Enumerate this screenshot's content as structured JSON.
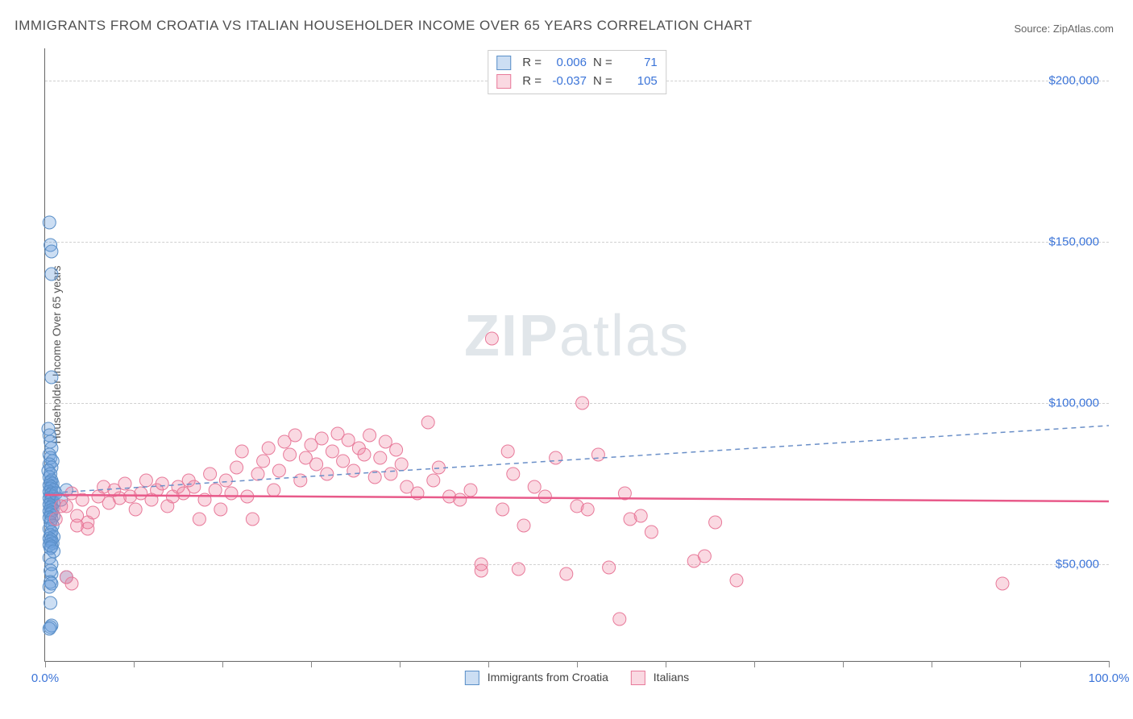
{
  "title": "IMMIGRANTS FROM CROATIA VS ITALIAN HOUSEHOLDER INCOME OVER 65 YEARS CORRELATION CHART",
  "source": "Source: ZipAtlas.com",
  "watermark": "ZIPatlas",
  "ylabel": "Householder Income Over 65 years",
  "chart": {
    "type": "scatter",
    "background_color": "#ffffff",
    "grid_color": "#d0d0d0",
    "axis_color": "#666666",
    "xlim": [
      0,
      100
    ],
    "ylim": [
      20000,
      210000
    ],
    "xtick_label_left": "0.0%",
    "xtick_label_right": "100.0%",
    "xtick_positions": [
      0,
      8.3,
      16.7,
      25,
      33.3,
      41.7,
      50,
      58.3,
      66.7,
      75,
      83.3,
      91.7,
      100
    ],
    "yticks": [
      {
        "value": 50000,
        "label": "$50,000"
      },
      {
        "value": 100000,
        "label": "$100,000"
      },
      {
        "value": 150000,
        "label": "$150,000"
      },
      {
        "value": 200000,
        "label": "$200,000"
      }
    ],
    "ytick_color": "#3b74d8",
    "xtick_color": "#3b74d8",
    "label_fontsize": 14,
    "tick_fontsize": 15,
    "title_fontsize": 17,
    "marker_radius": 8,
    "series": [
      {
        "id": "croatia",
        "name": "Immigrants from Croatia",
        "fill_color": "rgba(108,160,220,0.35)",
        "stroke_color": "#5a8fc8",
        "trend": {
          "style": "dashed",
          "color": "#6a8fc8",
          "width": 1.5,
          "y_at_x0": 72000,
          "y_at_x100": 93000
        },
        "R": "0.006",
        "N": "71",
        "points": [
          [
            0.4,
            156000
          ],
          [
            0.5,
            149000
          ],
          [
            0.6,
            147000
          ],
          [
            0.6,
            140000
          ],
          [
            0.6,
            108000
          ],
          [
            0.3,
            92000
          ],
          [
            0.4,
            90000
          ],
          [
            0.5,
            88000
          ],
          [
            0.6,
            86000
          ],
          [
            0.4,
            84000
          ],
          [
            0.5,
            83000
          ],
          [
            0.7,
            82000
          ],
          [
            0.4,
            81000
          ],
          [
            0.6,
            80000
          ],
          [
            0.3,
            79000
          ],
          [
            0.5,
            78000
          ],
          [
            0.4,
            77000
          ],
          [
            0.6,
            76000
          ],
          [
            0.5,
            75500
          ],
          [
            0.7,
            75000
          ],
          [
            0.4,
            74500
          ],
          [
            0.6,
            74000
          ],
          [
            0.5,
            73500
          ],
          [
            0.8,
            73000
          ],
          [
            0.4,
            72500
          ],
          [
            0.6,
            72000
          ],
          [
            0.5,
            71500
          ],
          [
            0.7,
            71000
          ],
          [
            0.4,
            70500
          ],
          [
            0.6,
            70000
          ],
          [
            0.5,
            69500
          ],
          [
            0.8,
            69000
          ],
          [
            0.4,
            68500
          ],
          [
            0.6,
            68000
          ],
          [
            0.5,
            67500
          ],
          [
            0.7,
            67000
          ],
          [
            0.4,
            66500
          ],
          [
            0.6,
            66000
          ],
          [
            0.5,
            65500
          ],
          [
            0.8,
            65000
          ],
          [
            0.4,
            64500
          ],
          [
            0.6,
            64000
          ],
          [
            0.5,
            63000
          ],
          [
            0.7,
            62000
          ],
          [
            0.4,
            61000
          ],
          [
            0.6,
            60000
          ],
          [
            0.5,
            59000
          ],
          [
            0.8,
            58500
          ],
          [
            0.4,
            58000
          ],
          [
            0.6,
            57500
          ],
          [
            0.5,
            57000
          ],
          [
            0.7,
            56500
          ],
          [
            0.4,
            56000
          ],
          [
            0.6,
            55500
          ],
          [
            0.5,
            55000
          ],
          [
            0.8,
            54000
          ],
          [
            0.4,
            52000
          ],
          [
            0.6,
            50000
          ],
          [
            0.5,
            48000
          ],
          [
            0.6,
            47000
          ],
          [
            2.0,
            46000
          ],
          [
            0.5,
            44500
          ],
          [
            0.6,
            44000
          ],
          [
            0.4,
            43000
          ],
          [
            0.5,
            38000
          ],
          [
            0.6,
            31000
          ],
          [
            0.5,
            30500
          ],
          [
            0.4,
            30000
          ],
          [
            1.0,
            72000
          ],
          [
            1.5,
            70000
          ],
          [
            2.0,
            73000
          ]
        ]
      },
      {
        "id": "italians",
        "name": "Italians",
        "fill_color": "rgba(240,130,160,0.30)",
        "stroke_color": "#e87a9a",
        "trend": {
          "style": "solid",
          "color": "#e85a8a",
          "width": 2.5,
          "y_at_x0": 71500,
          "y_at_x100": 69500
        },
        "R": "-0.037",
        "N": "105",
        "points": [
          [
            2,
            68000
          ],
          [
            2.5,
            72000
          ],
          [
            3,
            65000
          ],
          [
            3.5,
            70000
          ],
          [
            4,
            63000
          ],
          [
            4.5,
            66000
          ],
          [
            5,
            71000
          ],
          [
            5.5,
            74000
          ],
          [
            6,
            69000
          ],
          [
            6.5,
            73000
          ],
          [
            7,
            70500
          ],
          [
            7.5,
            75000
          ],
          [
            8,
            71000
          ],
          [
            8.5,
            67000
          ],
          [
            9,
            72000
          ],
          [
            9.5,
            76000
          ],
          [
            10,
            70000
          ],
          [
            10.5,
            73000
          ],
          [
            11,
            75000
          ],
          [
            11.5,
            68000
          ],
          [
            12,
            71000
          ],
          [
            12.5,
            74000
          ],
          [
            13,
            72000
          ],
          [
            13.5,
            76000
          ],
          [
            14,
            74000
          ],
          [
            14.5,
            64000
          ],
          [
            15,
            70000
          ],
          [
            15.5,
            78000
          ],
          [
            16,
            73000
          ],
          [
            16.5,
            67000
          ],
          [
            17,
            76000
          ],
          [
            17.5,
            72000
          ],
          [
            18,
            80000
          ],
          [
            18.5,
            85000
          ],
          [
            19,
            71000
          ],
          [
            19.5,
            64000
          ],
          [
            20,
            78000
          ],
          [
            20.5,
            82000
          ],
          [
            21,
            86000
          ],
          [
            21.5,
            73000
          ],
          [
            22,
            79000
          ],
          [
            22.5,
            88000
          ],
          [
            23,
            84000
          ],
          [
            23.5,
            90000
          ],
          [
            24,
            76000
          ],
          [
            24.5,
            83000
          ],
          [
            25,
            87000
          ],
          [
            25.5,
            81000
          ],
          [
            26,
            89000
          ],
          [
            26.5,
            78000
          ],
          [
            27,
            85000
          ],
          [
            27.5,
            90500
          ],
          [
            28,
            82000
          ],
          [
            28.5,
            88500
          ],
          [
            29,
            79000
          ],
          [
            29.5,
            86000
          ],
          [
            30,
            84000
          ],
          [
            30.5,
            90000
          ],
          [
            31,
            77000
          ],
          [
            31.5,
            83000
          ],
          [
            32,
            88000
          ],
          [
            32.5,
            78000
          ],
          [
            33,
            85500
          ],
          [
            33.5,
            81000
          ],
          [
            34,
            74000
          ],
          [
            35,
            72000
          ],
          [
            36,
            94000
          ],
          [
            36.5,
            76000
          ],
          [
            37,
            80000
          ],
          [
            38,
            71000
          ],
          [
            39,
            70000
          ],
          [
            40,
            73000
          ],
          [
            41,
            50000
          ],
          [
            41,
            48000
          ],
          [
            42,
            120000
          ],
          [
            43,
            67000
          ],
          [
            43.5,
            85000
          ],
          [
            44,
            78000
          ],
          [
            44.5,
            48500
          ],
          [
            45,
            62000
          ],
          [
            46,
            74000
          ],
          [
            47,
            71000
          ],
          [
            48,
            83000
          ],
          [
            49,
            47000
          ],
          [
            50,
            68000
          ],
          [
            50.5,
            100000
          ],
          [
            51,
            67000
          ],
          [
            52,
            84000
          ],
          [
            53,
            49000
          ],
          [
            54,
            33000
          ],
          [
            54.5,
            72000
          ],
          [
            55,
            64000
          ],
          [
            56,
            65000
          ],
          [
            57,
            60000
          ],
          [
            61,
            51000
          ],
          [
            62,
            52500
          ],
          [
            63,
            63000
          ],
          [
            65,
            45000
          ],
          [
            90,
            44000
          ],
          [
            3,
            62000
          ],
          [
            4,
            61000
          ],
          [
            1.5,
            68000
          ],
          [
            2,
            46000
          ],
          [
            1,
            64000
          ],
          [
            2.5,
            44000
          ]
        ]
      }
    ],
    "bottom_legend": [
      {
        "series": "croatia"
      },
      {
        "series": "italians"
      }
    ]
  }
}
